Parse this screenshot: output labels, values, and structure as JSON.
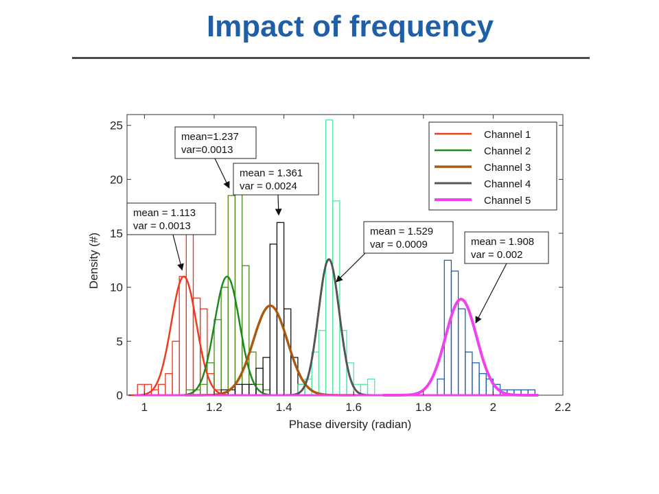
{
  "slide": {
    "title": "Impact of frequency"
  },
  "chart_data": {
    "type": "bar",
    "xlabel": "Phase diversity (radian)",
    "ylabel": "Density (#)",
    "xlim": [
      0.95,
      2.2
    ],
    "ylim": [
      0,
      26
    ],
    "xticks": [
      1,
      1.2,
      1.4,
      1.6,
      1.8,
      2,
      2.2
    ],
    "yticks": [
      0,
      5,
      10,
      15,
      20,
      25
    ],
    "legend_position": "top-right",
    "histogram_bin_width": 0.02,
    "histograms": [
      {
        "color": "#e8341c",
        "bins": [
          {
            "x": 0.99,
            "y": 1
          },
          {
            "x": 1.01,
            "y": 1
          },
          {
            "x": 1.03,
            "y": 0.5
          },
          {
            "x": 1.05,
            "y": 1
          },
          {
            "x": 1.07,
            "y": 2
          },
          {
            "x": 1.09,
            "y": 5
          },
          {
            "x": 1.11,
            "y": 11
          },
          {
            "x": 1.13,
            "y": 15
          },
          {
            "x": 1.15,
            "y": 9
          },
          {
            "x": 1.17,
            "y": 8
          },
          {
            "x": 1.19,
            "y": 2
          },
          {
            "x": 1.21,
            "y": 0.5
          }
        ]
      },
      {
        "color": "#4a8a1a",
        "bins": [
          {
            "x": 1.13,
            "y": 0.5
          },
          {
            "x": 1.15,
            "y": 0.5
          },
          {
            "x": 1.17,
            "y": 1
          },
          {
            "x": 1.19,
            "y": 3
          },
          {
            "x": 1.21,
            "y": 7
          },
          {
            "x": 1.23,
            "y": 10
          },
          {
            "x": 1.25,
            "y": 18.5
          },
          {
            "x": 1.27,
            "y": 19
          },
          {
            "x": 1.29,
            "y": 12
          },
          {
            "x": 1.31,
            "y": 4
          },
          {
            "x": 1.33,
            "y": 1
          },
          {
            "x": 1.35,
            "y": 0.5
          }
        ]
      },
      {
        "color": "#111111",
        "bins": [
          {
            "x": 1.23,
            "y": 0.5
          },
          {
            "x": 1.25,
            "y": 0.5
          },
          {
            "x": 1.27,
            "y": 1
          },
          {
            "x": 1.29,
            "y": 1
          },
          {
            "x": 1.31,
            "y": 1
          },
          {
            "x": 1.33,
            "y": 2.5
          },
          {
            "x": 1.35,
            "y": 3.5
          },
          {
            "x": 1.37,
            "y": 14
          },
          {
            "x": 1.39,
            "y": 16
          },
          {
            "x": 1.41,
            "y": 8
          },
          {
            "x": 1.43,
            "y": 3.5
          },
          {
            "x": 1.45,
            "y": 1
          }
        ]
      },
      {
        "color": "#4fe8a0",
        "bins": [
          {
            "x": 1.45,
            "y": 1
          },
          {
            "x": 1.47,
            "y": 1.5
          },
          {
            "x": 1.49,
            "y": 4
          },
          {
            "x": 1.51,
            "y": 6
          },
          {
            "x": 1.53,
            "y": 25.5
          },
          {
            "x": 1.55,
            "y": 18
          },
          {
            "x": 1.57,
            "y": 6
          },
          {
            "x": 1.59,
            "y": 3
          },
          {
            "x": 1.61,
            "y": 1
          },
          {
            "x": 1.63,
            "y": 1
          },
          {
            "x": 1.65,
            "y": 1.5
          }
        ]
      },
      {
        "color": "#1a5fb0",
        "bins": [
          {
            "x": 1.85,
            "y": 1.5
          },
          {
            "x": 1.87,
            "y": 12.5
          },
          {
            "x": 1.89,
            "y": 11.5
          },
          {
            "x": 1.91,
            "y": 8
          },
          {
            "x": 1.93,
            "y": 4
          },
          {
            "x": 1.95,
            "y": 3
          },
          {
            "x": 1.97,
            "y": 2
          },
          {
            "x": 1.99,
            "y": 1.5
          },
          {
            "x": 2.01,
            "y": 1
          },
          {
            "x": 2.03,
            "y": 0.5
          },
          {
            "x": 2.05,
            "y": 0.5
          },
          {
            "x": 2.07,
            "y": 0.5
          },
          {
            "x": 2.09,
            "y": 0.5
          },
          {
            "x": 2.11,
            "y": 0.5
          }
        ]
      }
    ],
    "series": [
      {
        "name": "Channel 1",
        "color": "#f03a1c",
        "width": 2.5,
        "mean": 1.113,
        "variance": 0.0013,
        "peak": 11
      },
      {
        "name": "Channel 2",
        "color": "#1a8a1a",
        "width": 2.5,
        "mean": 1.237,
        "variance": 0.0013,
        "peak": 11
      },
      {
        "name": "Channel 3",
        "color": "#a85a10",
        "width": 3.5,
        "mean": 1.361,
        "variance": 0.0024,
        "peak": 8.3
      },
      {
        "name": "Channel 4",
        "color": "#555555",
        "width": 3,
        "mean": 1.529,
        "variance": 0.0009,
        "peak": 12.6
      },
      {
        "name": "Channel 5",
        "color": "#f040f0",
        "width": 4,
        "mean": 1.908,
        "variance": 0.002,
        "peak": 8.9
      }
    ],
    "annotations": [
      {
        "lines": [
          "mean=1.237",
          "var=0.0013"
        ],
        "arrow_to": [
          1.243,
          19.2
        ]
      },
      {
        "lines": [
          "mean = 1.361",
          "var = 0.0024"
        ],
        "arrow_to": [
          1.385,
          16.7
        ]
      },
      {
        "lines": [
          "mean = 1.113",
          "var = 0.0013"
        ],
        "arrow_to": [
          1.108,
          11.6
        ]
      },
      {
        "lines": [
          "mean = 1.529",
          "var = 0.0009"
        ],
        "arrow_to": [
          1.55,
          10.5
        ]
      },
      {
        "lines": [
          "mean = 1.908",
          "var = 0.002"
        ],
        "arrow_to": [
          1.95,
          6.7
        ]
      }
    ]
  }
}
